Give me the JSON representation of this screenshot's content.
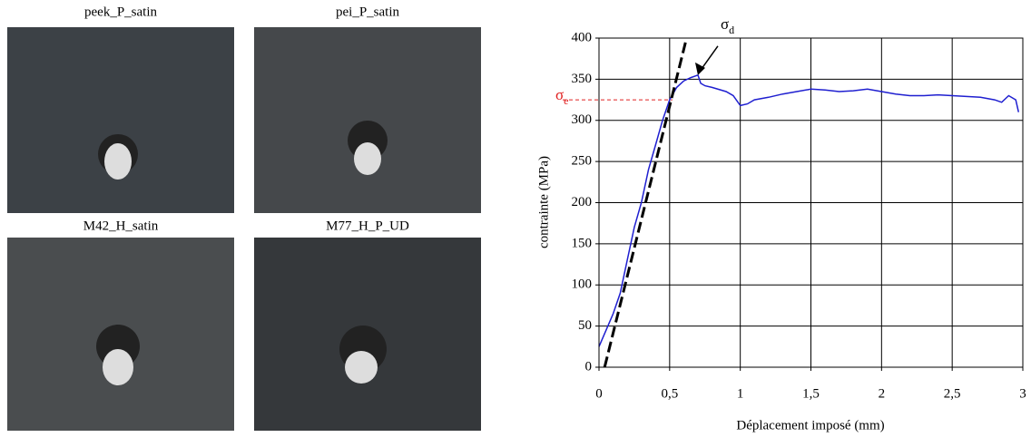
{
  "photo_labels": [
    "peek_P_satin",
    "pei_P_satin",
    "M42_H_satin",
    "M77_H_P_UD"
  ],
  "chart_data": {
    "type": "line",
    "xlabel": "Déplacement imposé (mm)",
    "ylabel": "contrainte (MPa)",
    "xlim": [
      0,
      3
    ],
    "ylim": [
      0,
      400
    ],
    "xticks": [
      0,
      {
        "value": 0.5,
        "label": "0,5"
      },
      1,
      {
        "value": 1.5,
        "label": "1,5"
      },
      2,
      {
        "value": 2.5,
        "label": "2,5"
      },
      3
    ],
    "yticks": [
      0,
      50,
      100,
      150,
      200,
      250,
      300,
      350,
      400
    ],
    "grid": true,
    "series": [
      {
        "color": "#1f1fd0",
        "x": [
          0,
          0.05,
          0.1,
          0.15,
          0.2,
          0.25,
          0.3,
          0.35,
          0.4,
          0.45,
          0.5,
          0.55,
          0.6,
          0.65,
          0.7,
          0.72,
          0.75,
          0.8,
          0.9,
          0.95,
          1.0,
          1.05,
          1.1,
          1.2,
          1.3,
          1.4,
          1.5,
          1.6,
          1.7,
          1.8,
          1.9,
          2.0,
          2.1,
          2.2,
          2.3,
          2.4,
          2.5,
          2.6,
          2.7,
          2.8,
          2.85,
          2.9,
          2.95,
          2.97
        ],
        "values": [
          25,
          45,
          65,
          90,
          130,
          170,
          200,
          240,
          270,
          300,
          325,
          340,
          348,
          352,
          355,
          345,
          342,
          340,
          335,
          330,
          318,
          320,
          325,
          328,
          332,
          335,
          338,
          337,
          335,
          336,
          338,
          335,
          332,
          330,
          330,
          331,
          330,
          329,
          328,
          325,
          322,
          330,
          325,
          310
        ]
      }
    ],
    "tangent": {
      "color": "#000000",
      "x": [
        0.04,
        0.62
      ],
      "values": [
        0,
        400
      ]
    },
    "annotations": [
      {
        "symbol": "σ",
        "subscript": "d",
        "x": 0.7,
        "value": 355,
        "color": "#000000"
      },
      {
        "symbol": "σ",
        "subscript": "e",
        "value": 325,
        "color": "#e02020"
      }
    ]
  }
}
